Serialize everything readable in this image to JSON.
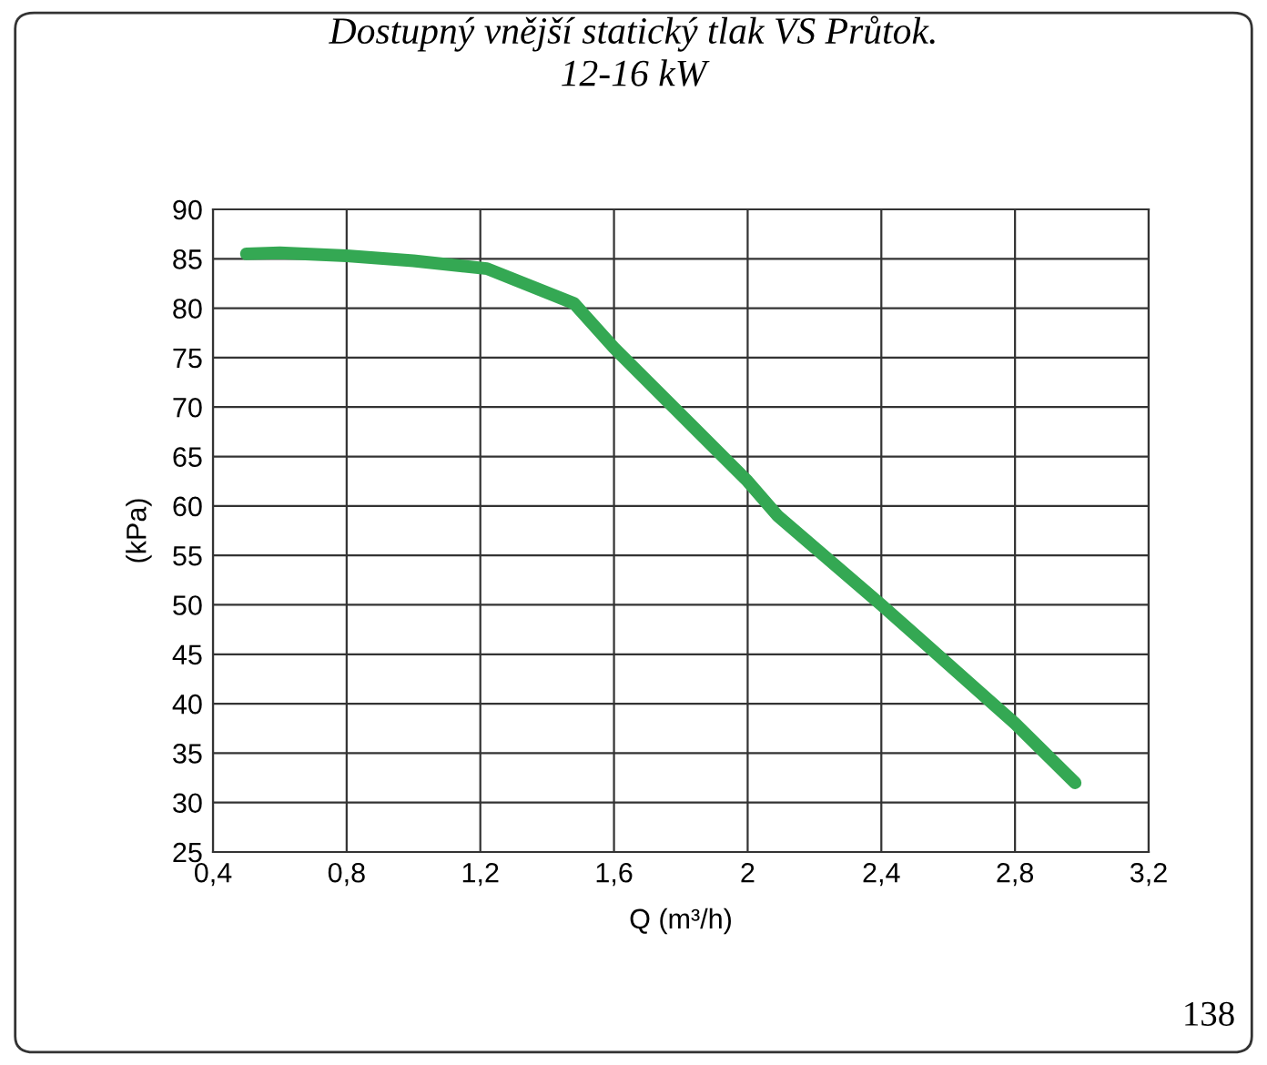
{
  "chart_data": {
    "type": "line",
    "title": "Dostupný vnější statický tlak VS Průtok.\n12-16 kW",
    "xlabel": "Q (m³/h)",
    "ylabel": "(kPa)",
    "x": [
      0.5,
      0.6,
      0.8,
      1.0,
      1.22,
      1.48,
      1.6,
      2.0,
      2.09,
      2.4,
      2.8,
      2.98
    ],
    "series": [
      {
        "color": "#34a853",
        "values": [
          85.5,
          85.6,
          85.3,
          84.8,
          84.0,
          80.5,
          76.0,
          62.5,
          59.0,
          50.0,
          38.0,
          32.0
        ]
      }
    ],
    "xlim": [
      0.4,
      3.2
    ],
    "xticks": [
      {
        "value": 0.4,
        "label": "0,4"
      },
      {
        "value": 0.8,
        "label": "0,8"
      },
      {
        "value": 1.2,
        "label": "1,2"
      },
      {
        "value": 1.6,
        "label": "1,6"
      },
      {
        "value": 2,
        "label": "2"
      },
      {
        "value": 2.4,
        "label": "2,4"
      },
      {
        "value": 2.8,
        "label": "2,8"
      },
      {
        "value": 3.2,
        "label": "3,2"
      }
    ],
    "ylim": [
      25,
      90
    ],
    "yticks": [
      25,
      30,
      35,
      40,
      45,
      50,
      55,
      60,
      65,
      70,
      75,
      80,
      85,
      90
    ],
    "grid": true,
    "marker": "none",
    "line_style": "solid",
    "annotations": [
      "138"
    ]
  }
}
